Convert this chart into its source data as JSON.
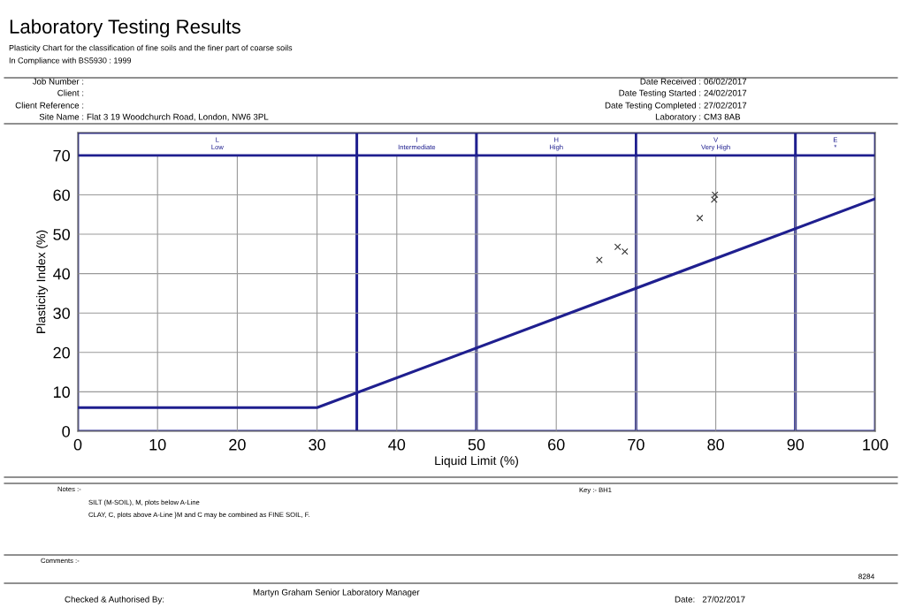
{
  "chart_data": {
    "type": "scatter",
    "title": "Laboratory Testing Results",
    "subtitle": "Plasticity Chart for the classification of fine soils and the finer part of coarse soils\nIn Compliance with BS5930 : 1999",
    "xlabel": "Liquid Limit (%)",
    "ylabel": "Plasticity Index (%)",
    "series": [
      {
        "type": "line",
        "color": "#1f1f8f",
        "x": [
          0,
          30,
          100
        ],
        "values": [
          6,
          6,
          59
        ],
        "marker": "none",
        "line_style": "solid"
      },
      {
        "color": "#333333",
        "x": [
          65.4,
          67.7,
          68.6,
          78.0,
          79.9,
          79.8
        ],
        "values": [
          43.5,
          46.8,
          45.6,
          54.1,
          60.0,
          58.8
        ],
        "marker": "cross"
      }
    ],
    "xlim": [
      0,
      100
    ],
    "xticks": [
      0,
      10,
      20,
      30,
      40,
      50,
      60,
      70,
      80,
      90,
      100
    ],
    "ylim": [
      0,
      75.8
    ],
    "yticks": [
      0,
      10,
      20,
      30,
      40,
      50,
      60,
      70
    ],
    "grid": true,
    "bands": [
      {
        "axis": "x",
        "from": 0,
        "to": 35,
        "label": "L\nLow",
        "color": "#1f1f8f"
      },
      {
        "axis": "x",
        "from": 35,
        "to": 50,
        "label": "I\nIntermediate",
        "color": "#1f1f8f"
      },
      {
        "axis": "x",
        "from": 50,
        "to": 70,
        "label": "H\nHigh",
        "color": "#1f1f8f"
      },
      {
        "axis": "x",
        "from": 70,
        "to": 90,
        "label": "V\nVery High",
        "color": "#1f1f8f"
      },
      {
        "axis": "x",
        "from": 90,
        "to": 100,
        "label": "E\n*",
        "color": "#1f1f8f"
      }
    ],
    "annotations": [
      "Job Number :",
      "Client :",
      "Client Reference :",
      "Site Name :",
      "Flat 3 19 Woodchurch Road, London, NW6 3PL",
      "Date Received :",
      "Date Testing Started :",
      "Date Testing Completed :",
      "Laboratory :",
      "06/02/2017",
      "24/02/2017",
      "27/02/2017",
      "CM3 8AB",
      "Notes :-",
      "SILT (M-SOIL), M, plots below A-Line",
      "CLAY, C, plots above A-Line }M and C may be combined as FINE SOIL, F.",
      "Key :- BH1",
      "Comments :-",
      "Checked & Authorised By:",
      "Martyn Graham Senior Laboratory Manager",
      "Date:   27/02/2017",
      "8284"
    ]
  }
}
